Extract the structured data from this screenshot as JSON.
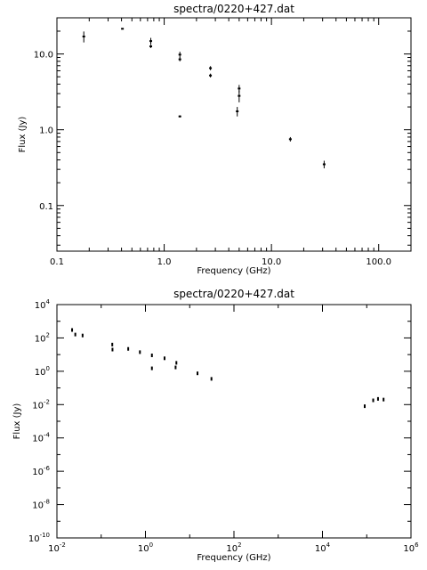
{
  "chart_data": [
    {
      "type": "scatter",
      "title": "spectra/0220+427.dat",
      "xlabel": "Frequency (GHz)",
      "ylabel": "Flux (Jy)",
      "xscale": "log",
      "yscale": "log",
      "xlim": [
        0.1,
        200
      ],
      "ylim": [
        0.025,
        30
      ],
      "xtick_labels": [
        "0.1",
        "1.0",
        "10.0",
        "100.0"
      ],
      "ytick_labels": [
        "0.1",
        "1.0",
        "10.0"
      ],
      "points": [
        {
          "x": 0.178,
          "y": 17.0,
          "err": 2.8
        },
        {
          "x": 0.408,
          "y": 21.5,
          "err": 0.3
        },
        {
          "x": 0.75,
          "y": 14.8,
          "err": 1.5
        },
        {
          "x": 0.75,
          "y": 12.6,
          "err": 0.6
        },
        {
          "x": 1.4,
          "y": 9.8,
          "err": 0.9
        },
        {
          "x": 1.4,
          "y": 8.5,
          "err": 0.5
        },
        {
          "x": 1.4,
          "y": 1.5,
          "err": 0.05
        },
        {
          "x": 2.7,
          "y": 6.5,
          "err": 0.4
        },
        {
          "x": 2.7,
          "y": 5.2,
          "err": 0.3
        },
        {
          "x": 5.0,
          "y": 3.5,
          "err": 0.4
        },
        {
          "x": 5.0,
          "y": 2.8,
          "err": 0.5
        },
        {
          "x": 4.8,
          "y": 1.75,
          "err": 0.25
        },
        {
          "x": 15.0,
          "y": 0.75,
          "err": 0.05
        },
        {
          "x": 31.0,
          "y": 0.35,
          "err": 0.04
        }
      ]
    },
    {
      "type": "scatter",
      "title": "spectra/0220+427.dat",
      "xlabel": "Frequency (GHz)",
      "ylabel": "Flux (Jy)",
      "xscale": "log",
      "yscale": "log",
      "xlim": [
        0.01,
        1000000
      ],
      "ylim": [
        1e-10,
        10000
      ],
      "xtick_labels": [
        {
          "base": "10",
          "exp": "-2"
        },
        {
          "base": "10",
          "exp": "0"
        },
        {
          "base": "10",
          "exp": "2"
        },
        {
          "base": "10",
          "exp": "4"
        },
        {
          "base": "10",
          "exp": "6"
        }
      ],
      "ytick_labels": [
        {
          "base": "10",
          "exp": "4"
        },
        {
          "base": "10",
          "exp": "2"
        },
        {
          "base": "10",
          "exp": "0"
        },
        {
          "base": "10",
          "exp": "-2"
        },
        {
          "base": "10",
          "exp": "-4"
        },
        {
          "base": "10",
          "exp": "-6"
        },
        {
          "base": "10",
          "exp": "-8"
        },
        {
          "base": "10",
          "exp": "-10"
        }
      ],
      "points": [
        {
          "x": 0.022,
          "y": 300
        },
        {
          "x": 0.026,
          "y": 160
        },
        {
          "x": 0.038,
          "y": 140
        },
        {
          "x": 0.178,
          "y": 40
        },
        {
          "x": 0.18,
          "y": 20
        },
        {
          "x": 0.408,
          "y": 22
        },
        {
          "x": 0.75,
          "y": 14
        },
        {
          "x": 1.4,
          "y": 9
        },
        {
          "x": 1.4,
          "y": 1.5
        },
        {
          "x": 2.7,
          "y": 6
        },
        {
          "x": 5.0,
          "y": 3.2
        },
        {
          "x": 4.8,
          "y": 1.7
        },
        {
          "x": 15.0,
          "y": 0.75
        },
        {
          "x": 31.0,
          "y": 0.35
        },
        {
          "x": 90000,
          "y": 0.008
        },
        {
          "x": 140000,
          "y": 0.018
        },
        {
          "x": 180000,
          "y": 0.022
        },
        {
          "x": 240000,
          "y": 0.02
        }
      ]
    }
  ]
}
